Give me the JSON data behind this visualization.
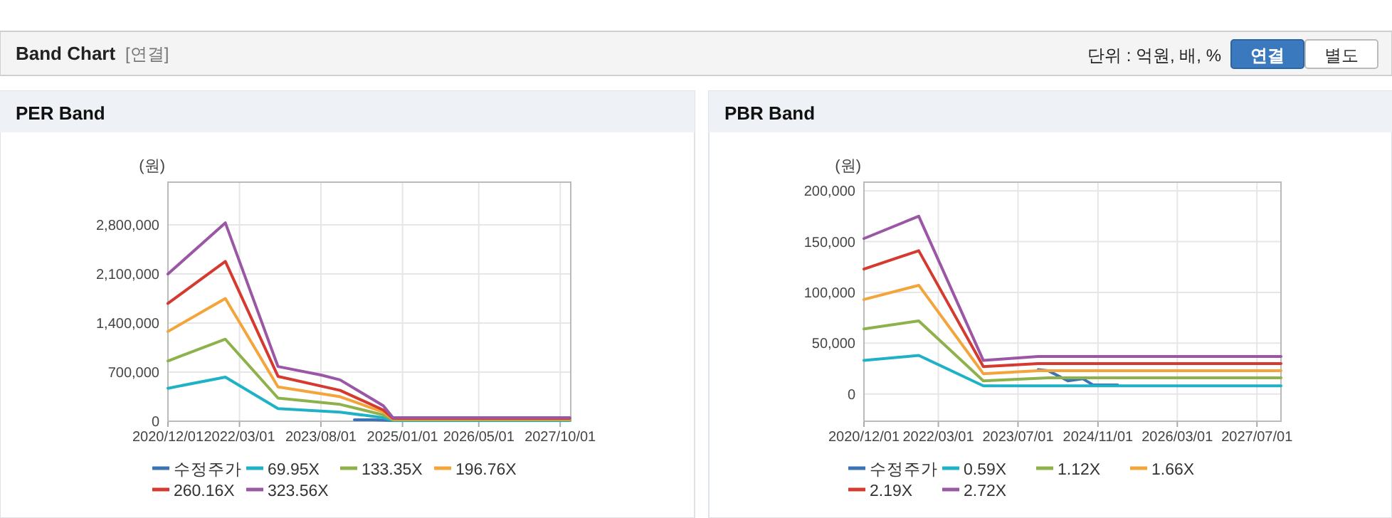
{
  "chart_data": [
    {
      "type": "other",
      "title": "Band Chart",
      "subtitle": "[연결]",
      "annotations": [
        "단위 : 억원, 배, %",
        "연결",
        "별도"
      ]
    },
    {
      "type": "line",
      "title": "PER Band",
      "ylabel": "(원)",
      "grid": true,
      "legend": "bottom",
      "marker": "none",
      "line_style": "solid",
      "xlim": [
        "2020-12-01",
        "2027-12-07"
      ],
      "xticks": [
        {
          "value": "2020-12-01",
          "label": "2020/12/01"
        },
        {
          "value": "2022-03-01",
          "label": "2022/03/01"
        },
        {
          "value": "2023-08-01",
          "label": "2023/08/01"
        },
        {
          "value": "2025-01-01",
          "label": "2025/01/01"
        },
        {
          "value": "2026-05-01",
          "label": "2026/05/01"
        },
        {
          "value": "2027-10-01",
          "label": "2027/10/01"
        }
      ],
      "ylim": [
        0,
        3410000
      ],
      "yticks": [
        0,
        {
          "value": 700000,
          "label": "700,000"
        },
        {
          "value": 1400000,
          "label": "1,400,000"
        },
        {
          "value": 2100000,
          "label": "2,100,000"
        },
        {
          "value": 2800000,
          "label": "2,800,000"
        }
      ],
      "series": [
        {
          "name": "수정주가",
          "color": "#3a74b4",
          "x": [
            "2024-03-01",
            "2024-07-01",
            "2024-11-01"
          ],
          "values": [
            20000,
            20000,
            10000
          ]
        },
        {
          "name": "69.95X",
          "color": "#1fb2c6",
          "x": [
            "2020-12-01",
            "2021-12-01",
            "2022-11-01",
            "2023-12-01",
            "2024-09-01",
            "2024-11-01",
            "2027-12-01"
          ],
          "values": [
            470000,
            630000,
            180000,
            130000,
            50000,
            10000,
            10000
          ]
        },
        {
          "name": "133.35X",
          "color": "#8db24c",
          "x": [
            "2020-12-01",
            "2021-12-01",
            "2022-11-01",
            "2023-12-01",
            "2024-09-01",
            "2024-11-01",
            "2027-12-01"
          ],
          "values": [
            860000,
            1170000,
            330000,
            240000,
            90000,
            20000,
            20000
          ]
        },
        {
          "name": "196.76X",
          "color": "#f3a43b",
          "x": [
            "2020-12-01",
            "2021-12-01",
            "2022-11-01",
            "2023-12-01",
            "2024-09-01",
            "2024-11-01",
            "2027-12-01"
          ],
          "values": [
            1280000,
            1750000,
            490000,
            350000,
            130000,
            30000,
            30000
          ]
        },
        {
          "name": "260.16X",
          "color": "#d53a30",
          "x": [
            "2020-12-01",
            "2021-12-01",
            "2022-11-01",
            "2023-12-01",
            "2024-09-01",
            "2024-11-01",
            "2027-12-01"
          ],
          "values": [
            1680000,
            2280000,
            640000,
            440000,
            160000,
            40000,
            40000
          ]
        },
        {
          "name": "323.56X",
          "color": "#9b57a5",
          "x": [
            "2020-12-01",
            "2021-12-01",
            "2022-11-01",
            "2023-08-01",
            "2023-12-01",
            "2024-09-01",
            "2024-11-01",
            "2027-12-01"
          ],
          "values": [
            2100000,
            2830000,
            780000,
            660000,
            590000,
            220000,
            50000,
            50000
          ]
        }
      ]
    },
    {
      "type": "line",
      "title": "PBR Band",
      "ylabel": "(원)",
      "grid": true,
      "legend": "bottom",
      "marker": "none",
      "line_style": "solid",
      "xlim": [
        "2020-12-01",
        "2027-11-25"
      ],
      "xticks": [
        {
          "value": "2020-12-01",
          "label": "2020/12/01"
        },
        {
          "value": "2022-03-01",
          "label": "2022/03/01"
        },
        {
          "value": "2023-07-01",
          "label": "2023/07/01"
        },
        {
          "value": "2024-11-01",
          "label": "2024/11/01"
        },
        {
          "value": "2026-03-01",
          "label": "2026/03/01"
        },
        {
          "value": "2027-07-01",
          "label": "2027/07/01"
        }
      ],
      "ylim": [
        -26800,
        208500
      ],
      "yticks": [
        0,
        {
          "value": 50000,
          "label": "50,000"
        },
        {
          "value": 100000,
          "label": "100,000"
        },
        {
          "value": 150000,
          "label": "150,000"
        },
        {
          "value": 200000,
          "label": "200,000"
        }
      ],
      "series": [
        {
          "name": "수정주가",
          "color": "#3a74b4",
          "x": [
            "2023-11-01",
            "2024-01-01",
            "2024-05-01",
            "2024-08-01",
            "2024-10-01",
            "2025-03-01"
          ],
          "values": [
            24000,
            23000,
            13000,
            15000,
            9000,
            9000
          ]
        },
        {
          "name": "0.59X",
          "color": "#1fb2c6",
          "x": [
            "2020-12-01",
            "2021-11-01",
            "2022-12-01",
            "2027-11-25"
          ],
          "values": [
            33000,
            38000,
            8000,
            8000
          ]
        },
        {
          "name": "1.12X",
          "color": "#8db24c",
          "x": [
            "2020-12-01",
            "2021-11-01",
            "2022-12-01",
            "2024-01-01",
            "2027-11-25"
          ],
          "values": [
            64000,
            72000,
            13000,
            16000,
            16000
          ]
        },
        {
          "name": "1.66X",
          "color": "#f3a43b",
          "x": [
            "2020-12-01",
            "2021-11-01",
            "2022-12-01",
            "2023-11-01",
            "2027-11-25"
          ],
          "values": [
            93000,
            107000,
            20000,
            23000,
            23000
          ]
        },
        {
          "name": "2.19X",
          "color": "#d53a30",
          "x": [
            "2020-12-01",
            "2021-11-01",
            "2022-12-01",
            "2023-11-01",
            "2027-11-25"
          ],
          "values": [
            123000,
            141000,
            27000,
            30000,
            30000
          ]
        },
        {
          "name": "2.72X",
          "color": "#9b57a5",
          "x": [
            "2020-12-01",
            "2021-11-01",
            "2022-12-01",
            "2023-11-01",
            "2027-11-25"
          ],
          "values": [
            153000,
            175000,
            33000,
            37000,
            37000
          ]
        }
      ]
    }
  ]
}
